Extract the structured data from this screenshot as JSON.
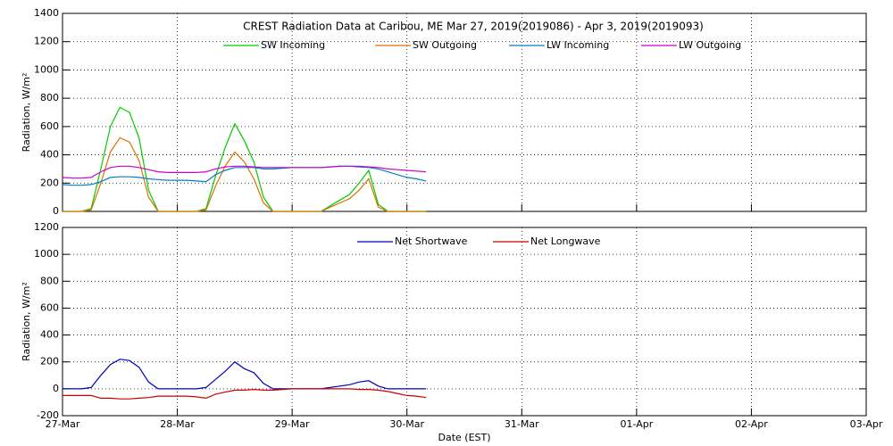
{
  "chart_data": [
    {
      "type": "line",
      "title": "CREST Radiation Data at Caribou, ME   Mar 27, 2019(2019086) - Apr  3, 2019(2019093)",
      "y_label": "Radiation, W/m²",
      "x": [
        0,
        2,
        4,
        6,
        8,
        10,
        12,
        14,
        16,
        18,
        20,
        22,
        24,
        26,
        28,
        30,
        32,
        34,
        36,
        38,
        40,
        42,
        44,
        46,
        48,
        50,
        52,
        54,
        56,
        58,
        60,
        62,
        64,
        66,
        68,
        70,
        72,
        74,
        76
      ],
      "xlim": [
        0,
        168
      ],
      "xticks": [
        0,
        24,
        48,
        72,
        96,
        120,
        144,
        168
      ],
      "ylim": [
        0,
        1400
      ],
      "yticks": [
        0,
        200,
        400,
        600,
        800,
        1000,
        1200,
        1400
      ],
      "grid": true,
      "series": [
        {
          "name": "SW Incoming",
          "color": "#00cc00",
          "values": [
            0,
            0,
            0,
            20,
            300,
            600,
            735,
            700,
            520,
            150,
            0,
            0,
            0,
            0,
            0,
            20,
            250,
            450,
            620,
            500,
            350,
            100,
            0,
            0,
            0,
            0,
            0,
            0,
            40,
            80,
            120,
            200,
            290,
            50,
            0,
            0,
            0,
            0,
            0
          ]
        },
        {
          "name": "SW Outgoing",
          "color": "#e07000",
          "values": [
            0,
            0,
            0,
            10,
            200,
            420,
            520,
            490,
            360,
            100,
            0,
            0,
            0,
            0,
            0,
            10,
            180,
            320,
            420,
            350,
            230,
            60,
            0,
            0,
            0,
            0,
            0,
            0,
            30,
            60,
            90,
            150,
            230,
            30,
            0,
            0,
            0,
            0,
            0
          ]
        },
        {
          "name": "LW Incoming",
          "color": "#0080c0",
          "values": [
            190,
            185,
            185,
            190,
            210,
            240,
            245,
            245,
            240,
            230,
            225,
            220,
            220,
            220,
            215,
            210,
            260,
            290,
            310,
            310,
            310,
            300,
            300,
            305,
            310,
            310,
            310,
            310,
            315,
            320,
            320,
            315,
            310,
            300,
            280,
            260,
            240,
            230,
            215
          ]
        },
        {
          "name": "LW Outgoing",
          "color": "#cc00cc",
          "values": [
            240,
            235,
            235,
            240,
            280,
            310,
            320,
            320,
            310,
            295,
            280,
            275,
            275,
            275,
            275,
            280,
            300,
            315,
            320,
            320,
            315,
            310,
            310,
            310,
            310,
            310,
            310,
            310,
            315,
            320,
            320,
            320,
            315,
            310,
            300,
            295,
            290,
            285,
            280
          ]
        }
      ]
    },
    {
      "type": "line",
      "y_label": "Radiation, W/m²",
      "x_label": "Date (EST)",
      "x": [
        0,
        2,
        4,
        6,
        8,
        10,
        12,
        14,
        16,
        18,
        20,
        22,
        24,
        26,
        28,
        30,
        32,
        34,
        36,
        38,
        40,
        42,
        44,
        46,
        48,
        50,
        52,
        54,
        56,
        58,
        60,
        62,
        64,
        66,
        68,
        70,
        72,
        74,
        76
      ],
      "xlim": [
        0,
        168
      ],
      "xticks": [
        {
          "value": 0,
          "label": "27-Mar"
        },
        {
          "value": 24,
          "label": "28-Mar"
        },
        {
          "value": 48,
          "label": "29-Mar"
        },
        {
          "value": 72,
          "label": "30-Mar"
        },
        {
          "value": 96,
          "label": "31-Mar"
        },
        {
          "value": 120,
          "label": "01-Apr"
        },
        {
          "value": 144,
          "label": "02-Apr"
        },
        {
          "value": 168,
          "label": "03-Apr"
        }
      ],
      "ylim": [
        -200,
        1200
      ],
      "yticks": [
        -200,
        0,
        200,
        400,
        600,
        800,
        1000,
        1200
      ],
      "grid": true,
      "series": [
        {
          "name": "Net Shortwave",
          "color": "#0000c0",
          "values": [
            0,
            0,
            0,
            10,
            100,
            180,
            220,
            210,
            160,
            50,
            0,
            0,
            0,
            0,
            0,
            10,
            70,
            130,
            200,
            150,
            120,
            40,
            0,
            0,
            0,
            0,
            0,
            0,
            10,
            20,
            30,
            50,
            60,
            20,
            0,
            0,
            0,
            0,
            0
          ]
        },
        {
          "name": "Net Longwave",
          "color": "#cc0000",
          "values": [
            -50,
            -50,
            -50,
            -50,
            -70,
            -70,
            -75,
            -75,
            -70,
            -65,
            -55,
            -55,
            -55,
            -55,
            -60,
            -70,
            -40,
            -25,
            -10,
            -10,
            -5,
            -10,
            -10,
            -5,
            0,
            0,
            0,
            0,
            0,
            0,
            0,
            -5,
            -5,
            -10,
            -20,
            -35,
            -50,
            -55,
            -65
          ]
        }
      ]
    }
  ]
}
